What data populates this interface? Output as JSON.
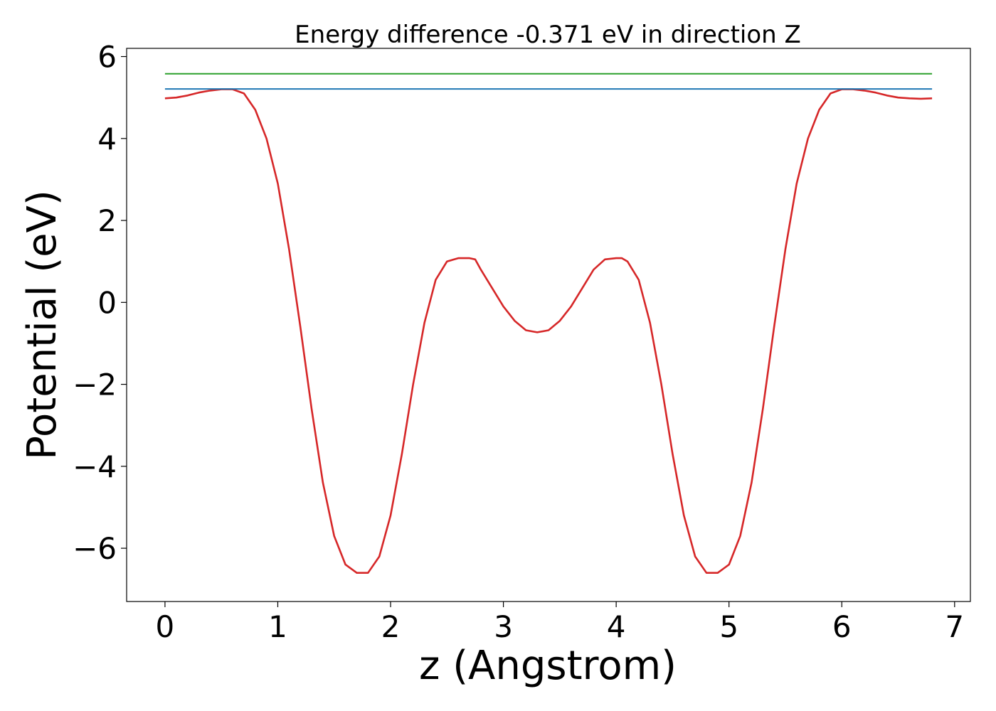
{
  "chart_data": {
    "type": "line",
    "title": "Energy difference -0.371 eV in direction Z",
    "xlabel": "z (Angstrom)",
    "ylabel": "Potential (eV)",
    "xlim": [
      -0.34,
      7.14
    ],
    "ylim": [
      -7.3,
      6.2
    ],
    "xticks": [
      0,
      1,
      2,
      3,
      4,
      5,
      6,
      7
    ],
    "yticks": [
      -6,
      -4,
      -2,
      0,
      2,
      4,
      6
    ],
    "grid": false,
    "series": [
      {
        "color": "#d62728",
        "x": [
          0,
          0.1,
          0.2,
          0.3,
          0.4,
          0.5,
          0.6,
          0.7,
          0.8,
          0.9,
          1.0,
          1.1,
          1.2,
          1.3,
          1.4,
          1.5,
          1.6,
          1.7,
          1.8,
          1.9,
          2.0,
          2.1,
          2.2,
          2.3,
          2.4,
          2.5,
          2.6,
          2.7,
          2.75,
          2.8,
          2.9,
          3.0,
          3.1,
          3.2,
          3.3,
          3.4,
          3.5,
          3.6,
          3.7,
          3.8,
          3.9,
          4.0,
          4.05,
          4.1,
          4.2,
          4.3,
          4.4,
          4.5,
          4.6,
          4.7,
          4.8,
          4.9,
          5.0,
          5.1,
          5.2,
          5.3,
          5.4,
          5.5,
          5.6,
          5.7,
          5.8,
          5.9,
          6.0,
          6.1,
          6.2,
          6.3,
          6.4,
          6.5,
          6.6,
          6.7,
          6.8
        ],
        "y": [
          4.98,
          5.0,
          5.05,
          5.12,
          5.17,
          5.2,
          5.2,
          5.1,
          4.7,
          4.0,
          2.9,
          1.3,
          -0.6,
          -2.6,
          -4.4,
          -5.7,
          -6.4,
          -6.6,
          -6.6,
          -6.2,
          -5.2,
          -3.7,
          -2.0,
          -0.5,
          0.55,
          1.0,
          1.08,
          1.08,
          1.05,
          0.8,
          0.35,
          -0.1,
          -0.45,
          -0.68,
          -0.73,
          -0.68,
          -0.45,
          -0.1,
          0.35,
          0.8,
          1.05,
          1.08,
          1.08,
          1.0,
          0.55,
          -0.5,
          -2.0,
          -3.7,
          -5.2,
          -6.2,
          -6.6,
          -6.6,
          -6.4,
          -5.7,
          -4.4,
          -2.6,
          -0.6,
          1.3,
          2.9,
          4.0,
          4.7,
          5.1,
          5.2,
          5.2,
          5.17,
          5.12,
          5.05,
          5.0,
          4.98,
          4.97,
          4.98
        ]
      },
      {
        "color": "#1f77b4",
        "x": [
          0,
          6.8
        ],
        "y": [
          5.21,
          5.21
        ]
      },
      {
        "color": "#2ca02c",
        "x": [
          0,
          6.8
        ],
        "y": [
          5.58,
          5.58
        ]
      }
    ]
  }
}
